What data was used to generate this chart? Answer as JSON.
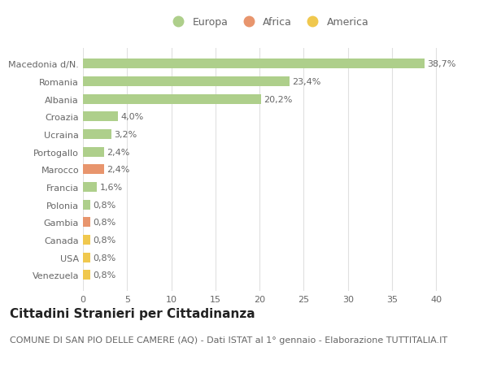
{
  "categories": [
    "Venezuela",
    "USA",
    "Canada",
    "Gambia",
    "Polonia",
    "Francia",
    "Marocco",
    "Portogallo",
    "Ucraina",
    "Croazia",
    "Albania",
    "Romania",
    "Macedonia d/N."
  ],
  "values": [
    0.8,
    0.8,
    0.8,
    0.8,
    0.8,
    1.6,
    2.4,
    2.4,
    3.2,
    4.0,
    20.2,
    23.4,
    38.7
  ],
  "labels": [
    "0,8%",
    "0,8%",
    "0,8%",
    "0,8%",
    "0,8%",
    "1,6%",
    "2,4%",
    "2,4%",
    "3,2%",
    "4,0%",
    "20,2%",
    "23,4%",
    "38,7%"
  ],
  "continents": [
    "America",
    "America",
    "America",
    "Africa",
    "Europa",
    "Europa",
    "Africa",
    "Europa",
    "Europa",
    "Europa",
    "Europa",
    "Europa",
    "Europa"
  ],
  "colors": {
    "Europa": "#aecf8b",
    "Africa": "#e8956d",
    "America": "#f0c84e"
  },
  "legend_items": [
    "Europa",
    "Africa",
    "America"
  ],
  "title": "Cittadini Stranieri per Cittadinanza",
  "subtitle": "COMUNE DI SAN PIO DELLE CAMERE (AQ) - Dati ISTAT al 1° gennaio - Elaborazione TUTTITALIA.IT",
  "xlim": [
    0,
    42
  ],
  "xticks": [
    0,
    5,
    10,
    15,
    20,
    25,
    30,
    35,
    40
  ],
  "bg_color": "#ffffff",
  "grid_color": "#e0e0e0",
  "bar_height": 0.55,
  "title_fontsize": 11,
  "subtitle_fontsize": 8,
  "label_fontsize": 8,
  "tick_fontsize": 8,
  "legend_fontsize": 9,
  "text_color": "#666666",
  "title_color": "#222222"
}
